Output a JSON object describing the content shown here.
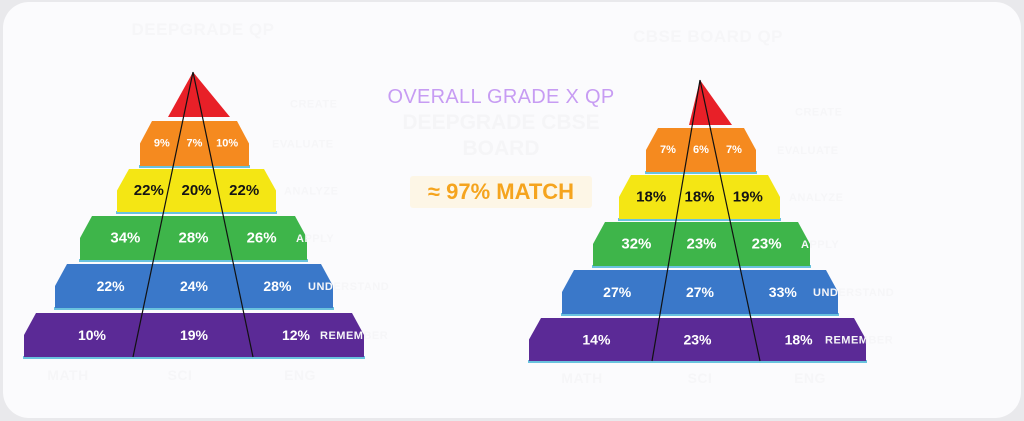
{
  "center": {
    "title": "OVERALL GRADE X QP",
    "subtitle": "DEEPGRADE    CBSE BOARD",
    "match": "≈ 97% MATCH"
  },
  "colors": {
    "create": "#e82028",
    "evaluate": "#f58a1f",
    "analyze": "#f4e614",
    "apply": "#3eb54a",
    "understand": "#3a78c9",
    "remember": "#5b2a96"
  },
  "pyramids": [
    {
      "title": "DEEPGRADE QP",
      "levels": [
        "CREATE",
        "EVALUATE",
        "ANALYZE",
        "APPLY",
        "UNDERSTAND",
        "REMEMBER"
      ],
      "subjects": [
        "MATH",
        "SCI",
        "ENG"
      ],
      "rows": [
        [
          "",
          "",
          ""
        ],
        [
          "9%",
          "7%",
          "10%"
        ],
        [
          "22%",
          "20%",
          "22%"
        ],
        [
          "34%",
          "28%",
          "26%"
        ],
        [
          "22%",
          "24%",
          "28%"
        ],
        [
          "10%",
          "19%",
          "12%"
        ]
      ]
    },
    {
      "title": "CBSE BOARD QP",
      "levels": [
        "CREATE",
        "EVALUATE",
        "ANALYZE",
        "APPLY",
        "UNDERSTAND",
        "REMEMBER"
      ],
      "subjects": [
        "MATH",
        "SCI",
        "ENG"
      ],
      "rows": [
        [
          "",
          "",
          ""
        ],
        [
          "7%",
          "6%",
          "7%"
        ],
        [
          "18%",
          "18%",
          "19%"
        ],
        [
          "32%",
          "23%",
          "23%"
        ],
        [
          "27%",
          "27%",
          "33%"
        ],
        [
          "14%",
          "23%",
          "18%"
        ]
      ]
    }
  ]
}
